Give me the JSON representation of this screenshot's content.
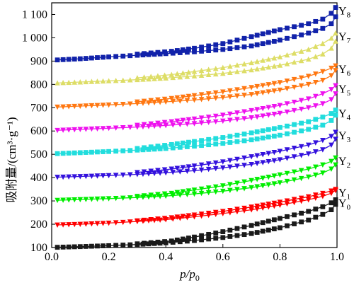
{
  "chart_data": {
    "type": "line",
    "xlabel": "p/p",
    "xlabel_sub": "0",
    "ylabel": "吸附量/(cm³·g⁻¹)",
    "xlim": [
      0.0,
      1.0
    ],
    "ylim": [
      100,
      1150
    ],
    "xticks": [
      "0.0",
      "0.2",
      "0.4",
      "0.6",
      "0.8",
      "1.0"
    ],
    "xtick_values": [
      0.0,
      0.2,
      0.4,
      0.6,
      0.8,
      1.0
    ],
    "yticks": [
      "100",
      "200",
      "300",
      "400",
      "500",
      "600",
      "700",
      "800",
      "900",
      "1 000",
      "1 100"
    ],
    "ytick_values": [
      100,
      200,
      300,
      400,
      500,
      600,
      700,
      800,
      900,
      1000,
      1100
    ],
    "series": [
      {
        "name": "Y",
        "sub": "0",
        "color": "#1a1a1a",
        "marker": "square",
        "adsorption": [
          [
            0.02,
            101
          ],
          [
            0.1,
            104
          ],
          [
            0.2,
            108
          ],
          [
            0.3,
            113
          ],
          [
            0.4,
            120
          ],
          [
            0.5,
            130
          ],
          [
            0.6,
            143
          ],
          [
            0.7,
            160
          ],
          [
            0.8,
            185
          ],
          [
            0.9,
            218
          ],
          [
            0.95,
            242
          ],
          [
            0.98,
            262
          ],
          [
            0.995,
            285
          ]
        ],
        "desorption": [
          [
            0.995,
            305
          ],
          [
            0.98,
            292
          ],
          [
            0.95,
            275
          ],
          [
            0.9,
            255
          ],
          [
            0.8,
            225
          ],
          [
            0.7,
            195
          ],
          [
            0.6,
            168
          ],
          [
            0.5,
            145
          ],
          [
            0.42,
            128
          ],
          [
            0.3,
            116
          ]
        ]
      },
      {
        "name": "Y",
        "sub": "1",
        "color": "#ff0000",
        "marker": "triangle-down",
        "adsorption": [
          [
            0.02,
            197
          ],
          [
            0.1,
            200
          ],
          [
            0.2,
            205
          ],
          [
            0.3,
            212
          ],
          [
            0.4,
            220
          ],
          [
            0.5,
            232
          ],
          [
            0.6,
            246
          ],
          [
            0.7,
            262
          ],
          [
            0.8,
            282
          ],
          [
            0.9,
            305
          ],
          [
            0.95,
            320
          ],
          [
            0.98,
            333
          ],
          [
            0.995,
            345
          ]
        ],
        "desorption": [
          [
            0.995,
            350
          ],
          [
            0.98,
            343
          ],
          [
            0.95,
            333
          ],
          [
            0.9,
            318
          ],
          [
            0.8,
            295
          ],
          [
            0.7,
            274
          ],
          [
            0.6,
            255
          ],
          [
            0.5,
            240
          ],
          [
            0.42,
            228
          ],
          [
            0.3,
            215
          ]
        ]
      },
      {
        "name": "Y",
        "sub": "2",
        "color": "#00ee00",
        "marker": "triangle-down",
        "adsorption": [
          [
            0.02,
            303
          ],
          [
            0.1,
            306
          ],
          [
            0.2,
            310
          ],
          [
            0.3,
            315
          ],
          [
            0.4,
            321
          ],
          [
            0.5,
            330
          ],
          [
            0.6,
            342
          ],
          [
            0.7,
            357
          ],
          [
            0.8,
            378
          ],
          [
            0.9,
            403
          ],
          [
            0.95,
            420
          ],
          [
            0.98,
            437
          ],
          [
            0.995,
            455
          ]
        ],
        "desorption": [
          [
            0.995,
            485
          ],
          [
            0.98,
            470
          ],
          [
            0.95,
            455
          ],
          [
            0.9,
            437
          ],
          [
            0.8,
            412
          ],
          [
            0.7,
            388
          ],
          [
            0.6,
            365
          ],
          [
            0.5,
            347
          ],
          [
            0.42,
            333
          ],
          [
            0.3,
            320
          ]
        ]
      },
      {
        "name": "Y",
        "sub": "3",
        "color": "#3311dd",
        "marker": "triangle-down",
        "adsorption": [
          [
            0.02,
            402
          ],
          [
            0.1,
            405
          ],
          [
            0.2,
            409
          ],
          [
            0.3,
            414
          ],
          [
            0.4,
            421
          ],
          [
            0.5,
            430
          ],
          [
            0.6,
            442
          ],
          [
            0.7,
            457
          ],
          [
            0.8,
            477
          ],
          [
            0.9,
            502
          ],
          [
            0.95,
            520
          ],
          [
            0.98,
            540
          ],
          [
            0.995,
            565
          ]
        ],
        "desorption": [
          [
            0.995,
            595
          ],
          [
            0.98,
            577
          ],
          [
            0.95,
            560
          ],
          [
            0.9,
            540
          ],
          [
            0.8,
            513
          ],
          [
            0.7,
            490
          ],
          [
            0.6,
            468
          ],
          [
            0.5,
            450
          ],
          [
            0.42,
            437
          ],
          [
            0.3,
            422
          ]
        ]
      },
      {
        "name": "Y",
        "sub": "4",
        "color": "#22dddd",
        "marker": "square",
        "adsorption": [
          [
            0.02,
            503
          ],
          [
            0.1,
            507
          ],
          [
            0.2,
            512
          ],
          [
            0.3,
            518
          ],
          [
            0.4,
            525
          ],
          [
            0.5,
            535
          ],
          [
            0.6,
            547
          ],
          [
            0.7,
            562
          ],
          [
            0.8,
            582
          ],
          [
            0.9,
            607
          ],
          [
            0.95,
            625
          ],
          [
            0.98,
            645
          ],
          [
            0.995,
            668
          ]
        ],
        "desorption": [
          [
            0.995,
            690
          ],
          [
            0.98,
            675
          ],
          [
            0.95,
            660
          ],
          [
            0.9,
            640
          ],
          [
            0.8,
            615
          ],
          [
            0.7,
            592
          ],
          [
            0.6,
            572
          ],
          [
            0.5,
            555
          ],
          [
            0.42,
            542
          ],
          [
            0.3,
            525
          ]
        ]
      },
      {
        "name": "Y",
        "sub": "5",
        "color": "#ee11ee",
        "marker": "triangle-down",
        "adsorption": [
          [
            0.02,
            603
          ],
          [
            0.1,
            607
          ],
          [
            0.2,
            612
          ],
          [
            0.3,
            617
          ],
          [
            0.4,
            624
          ],
          [
            0.5,
            632
          ],
          [
            0.6,
            643
          ],
          [
            0.7,
            657
          ],
          [
            0.8,
            676
          ],
          [
            0.9,
            700
          ],
          [
            0.95,
            717
          ],
          [
            0.98,
            735
          ],
          [
            0.995,
            760
          ]
        ],
        "desorption": [
          [
            0.995,
            795
          ],
          [
            0.98,
            778
          ],
          [
            0.95,
            760
          ],
          [
            0.9,
            738
          ],
          [
            0.8,
            710
          ],
          [
            0.7,
            688
          ],
          [
            0.6,
            668
          ],
          [
            0.5,
            652
          ],
          [
            0.42,
            640
          ],
          [
            0.3,
            625
          ]
        ]
      },
      {
        "name": "Y",
        "sub": "6",
        "color": "#ff7711",
        "marker": "triangle-down",
        "adsorption": [
          [
            0.02,
            703
          ],
          [
            0.1,
            707
          ],
          [
            0.2,
            712
          ],
          [
            0.3,
            718
          ],
          [
            0.4,
            725
          ],
          [
            0.5,
            733
          ],
          [
            0.6,
            744
          ],
          [
            0.7,
            757
          ],
          [
            0.8,
            776
          ],
          [
            0.9,
            800
          ],
          [
            0.95,
            818
          ],
          [
            0.98,
            838
          ],
          [
            0.995,
            860
          ]
        ],
        "desorption": [
          [
            0.995,
            880
          ],
          [
            0.98,
            870
          ],
          [
            0.95,
            855
          ],
          [
            0.9,
            835
          ],
          [
            0.8,
            808
          ],
          [
            0.7,
            787
          ],
          [
            0.6,
            768
          ],
          [
            0.5,
            752
          ],
          [
            0.42,
            740
          ],
          [
            0.3,
            725
          ]
        ]
      },
      {
        "name": "Y",
        "sub": "7",
        "color": "#dddd66",
        "marker": "triangle-up",
        "adsorption": [
          [
            0.02,
            806
          ],
          [
            0.1,
            810
          ],
          [
            0.2,
            815
          ],
          [
            0.3,
            820
          ],
          [
            0.4,
            827
          ],
          [
            0.5,
            836
          ],
          [
            0.6,
            847
          ],
          [
            0.7,
            862
          ],
          [
            0.8,
            882
          ],
          [
            0.9,
            908
          ],
          [
            0.95,
            930
          ],
          [
            0.98,
            955
          ],
          [
            0.995,
            985
          ]
        ],
        "desorption": [
          [
            0.995,
            1020
          ],
          [
            0.98,
            998
          ],
          [
            0.95,
            975
          ],
          [
            0.9,
            950
          ],
          [
            0.8,
            918
          ],
          [
            0.7,
            893
          ],
          [
            0.6,
            872
          ],
          [
            0.5,
            855
          ],
          [
            0.42,
            842
          ],
          [
            0.3,
            828
          ]
        ]
      },
      {
        "name": "Y",
        "sub": "8",
        "color": "#1122aa",
        "marker": "square",
        "adsorption": [
          [
            0.02,
            905
          ],
          [
            0.1,
            910
          ],
          [
            0.2,
            918
          ],
          [
            0.3,
            925
          ],
          [
            0.4,
            932
          ],
          [
            0.5,
            940
          ],
          [
            0.6,
            950
          ],
          [
            0.7,
            965
          ],
          [
            0.8,
            990
          ],
          [
            0.9,
            1020
          ],
          [
            0.95,
            1040
          ],
          [
            0.98,
            1060
          ],
          [
            0.995,
            1090
          ]
        ],
        "desorption": [
          [
            0.995,
            1130
          ],
          [
            0.98,
            1105
          ],
          [
            0.95,
            1080
          ],
          [
            0.9,
            1060
          ],
          [
            0.8,
            1035
          ],
          [
            0.7,
            1005
          ],
          [
            0.6,
            975
          ],
          [
            0.5,
            955
          ],
          [
            0.42,
            942
          ],
          [
            0.3,
            930
          ]
        ]
      }
    ]
  }
}
